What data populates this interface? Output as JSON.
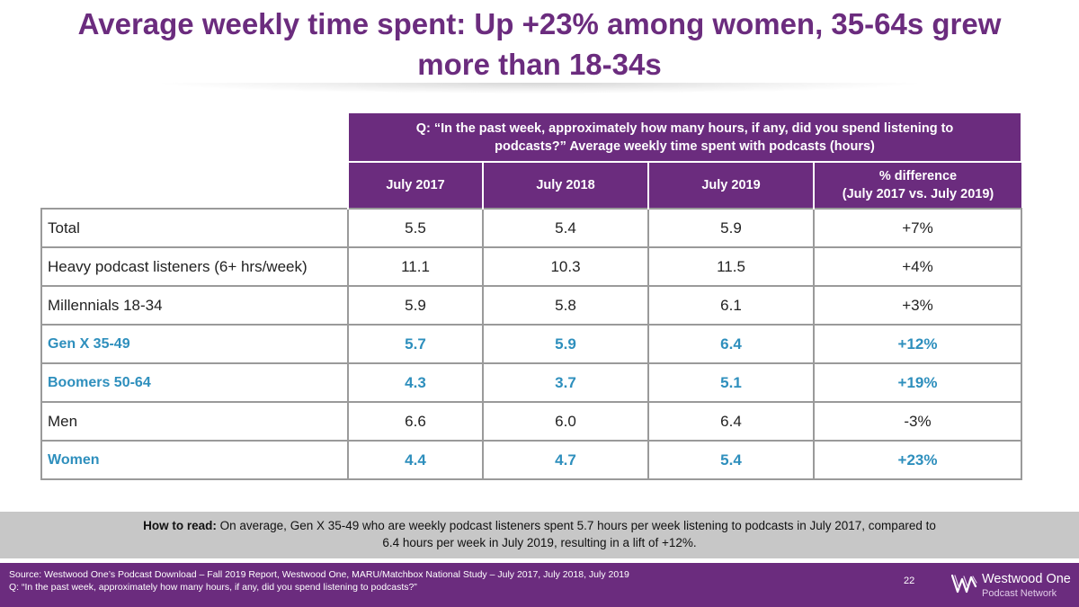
{
  "title": {
    "line1": "Average weekly time spent: Up +23% among women, 35-64s grew",
    "line2": "more than 18-34s"
  },
  "table": {
    "question_line1": "Q: “In the past week, approximately how many hours, if any, did you spend listening to",
    "question_line2": "podcasts?” Average weekly time spent with podcasts (hours)",
    "columns": [
      "July 2017",
      "July 2018",
      "July 2019"
    ],
    "diff_header_line1": "% difference",
    "diff_header_line2": "(July 2017 vs. July 2019)",
    "rows": [
      {
        "label": "Total",
        "v2017": "5.5",
        "v2018": "5.4",
        "v2019": "5.9",
        "diff": "+7%"
      },
      {
        "label": "Heavy podcast listeners (6+ hrs/week)",
        "v2017": "11.1",
        "v2018": "10.3",
        "v2019": "11.5",
        "diff": "+4%"
      },
      {
        "label": "Millennials 18-34",
        "v2017": "5.9",
        "v2018": "5.8",
        "v2019": "6.1",
        "diff": "+3%"
      },
      {
        "label": "Gen X 35-49",
        "v2017": "5.7",
        "v2018": "5.9",
        "v2019": "6.4",
        "diff": "+12%"
      },
      {
        "label": "Boomers 50-64",
        "v2017": "4.3",
        "v2018": "3.7",
        "v2019": "5.1",
        "diff": "+19%"
      },
      {
        "label": "Men",
        "v2017": "6.6",
        "v2018": "6.0",
        "v2019": "6.4",
        "diff": "-3%"
      },
      {
        "label": "Women",
        "v2017": "4.4",
        "v2018": "4.7",
        "v2019": "5.4",
        "diff": "+23%"
      }
    ]
  },
  "how_to_read": {
    "label": "How to read:",
    "text_line1": " On average, Gen X 35-49 who are weekly podcast listeners spent 5.7 hours per week listening to podcasts in July 2017, compared to",
    "text_line2": "6.4 hours per week in July 2019, resulting in a lift of +12%."
  },
  "footer": {
    "source": "Source: Westwood One’s Podcast Download – Fall 2019 Report, Westwood One, MARU/Matchbox National Study – July 2017, July 2018, July 2019",
    "question": "Q: “In the past week, approximately how many hours, if any, did you spend listening to podcasts?”",
    "page_number": "22",
    "logo_line1": "Westwood One",
    "logo_line2": "Podcast Network"
  },
  "colors": {
    "brand_purple": "#6b2c7e",
    "highlight_blue": "#2e8fbd",
    "howto_gray": "#c7c7c7"
  }
}
